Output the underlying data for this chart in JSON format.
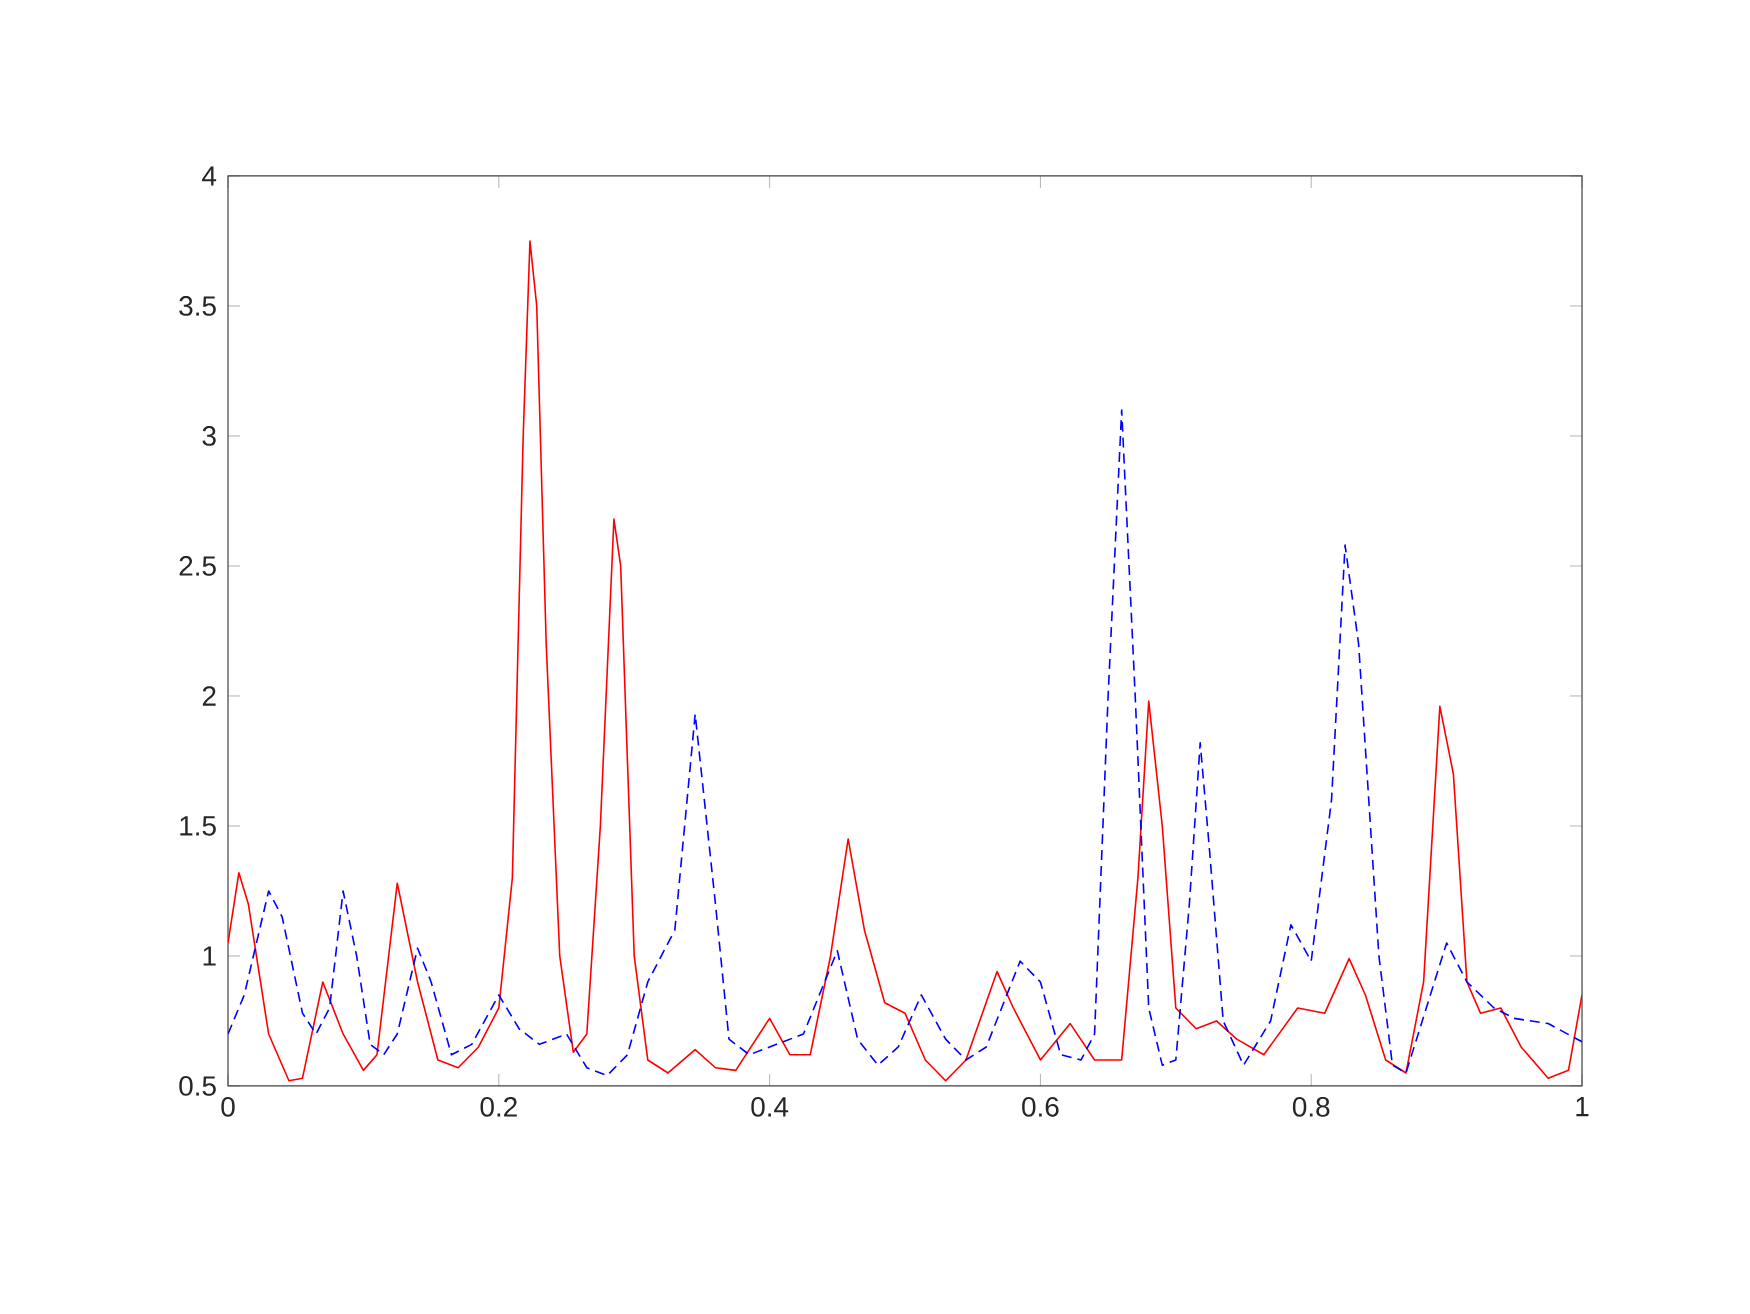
{
  "chart_data": {
    "type": "line",
    "xlim": [
      0,
      1
    ],
    "ylim": [
      0.5,
      4
    ],
    "xticks": [
      0,
      0.2,
      0.4,
      0.6,
      0.8,
      1
    ],
    "yticks": [
      0.5,
      1,
      1.5,
      2,
      2.5,
      3,
      3.5,
      4
    ],
    "marker": "none",
    "series": [
      {
        "color": "#ff0000",
        "line_style": "solid",
        "x": [
          0,
          0.008,
          0.015,
          0.03,
          0.045,
          0.055,
          0.07,
          0.085,
          0.1,
          0.11,
          0.125,
          0.14,
          0.155,
          0.17,
          0.185,
          0.2,
          0.21,
          0.218,
          0.223,
          0.228,
          0.235,
          0.245,
          0.255,
          0.265,
          0.275,
          0.285,
          0.29,
          0.3,
          0.31,
          0.325,
          0.345,
          0.36,
          0.375,
          0.4,
          0.415,
          0.43,
          0.445,
          0.458,
          0.47,
          0.485,
          0.5,
          0.515,
          0.53,
          0.545,
          0.568,
          0.58,
          0.6,
          0.622,
          0.64,
          0.66,
          0.672,
          0.68,
          0.69,
          0.7,
          0.715,
          0.73,
          0.745,
          0.765,
          0.79,
          0.81,
          0.828,
          0.84,
          0.855,
          0.87,
          0.883,
          0.895,
          0.905,
          0.915,
          0.925,
          0.94,
          0.955,
          0.975,
          0.99,
          1.0
        ],
        "values": [
          1.05,
          1.32,
          1.2,
          0.7,
          0.52,
          0.53,
          0.9,
          0.7,
          0.56,
          0.62,
          1.28,
          0.9,
          0.6,
          0.57,
          0.65,
          0.8,
          1.3,
          3.0,
          3.75,
          3.5,
          2.2,
          1.0,
          0.63,
          0.7,
          1.5,
          2.68,
          2.5,
          1.0,
          0.6,
          0.55,
          0.64,
          0.57,
          0.56,
          0.76,
          0.62,
          0.62,
          1.0,
          1.45,
          1.1,
          0.82,
          0.78,
          0.6,
          0.52,
          0.6,
          0.94,
          0.8,
          0.6,
          0.74,
          0.6,
          0.6,
          1.3,
          1.98,
          1.5,
          0.8,
          0.72,
          0.75,
          0.68,
          0.62,
          0.8,
          0.78,
          0.99,
          0.85,
          0.6,
          0.55,
          0.9,
          1.96,
          1.7,
          0.9,
          0.78,
          0.8,
          0.65,
          0.53,
          0.56,
          0.85
        ]
      },
      {
        "color": "#0000ff",
        "line_style": "dashed",
        "x": [
          0,
          0.012,
          0.03,
          0.04,
          0.055,
          0.065,
          0.075,
          0.085,
          0.095,
          0.105,
          0.115,
          0.125,
          0.14,
          0.15,
          0.165,
          0.18,
          0.2,
          0.215,
          0.23,
          0.25,
          0.265,
          0.28,
          0.295,
          0.31,
          0.33,
          0.345,
          0.36,
          0.37,
          0.385,
          0.4,
          0.425,
          0.45,
          0.465,
          0.48,
          0.495,
          0.512,
          0.53,
          0.545,
          0.56,
          0.585,
          0.6,
          0.615,
          0.63,
          0.64,
          0.65,
          0.66,
          0.67,
          0.68,
          0.69,
          0.7,
          0.71,
          0.718,
          0.725,
          0.735,
          0.75,
          0.77,
          0.785,
          0.8,
          0.815,
          0.825,
          0.835,
          0.85,
          0.86,
          0.87,
          0.885,
          0.9,
          0.915,
          0.935,
          0.95,
          0.975,
          1.0
        ],
        "values": [
          0.7,
          0.85,
          1.25,
          1.15,
          0.78,
          0.7,
          0.8,
          1.25,
          1.0,
          0.66,
          0.62,
          0.7,
          1.03,
          0.9,
          0.62,
          0.66,
          0.85,
          0.72,
          0.66,
          0.7,
          0.57,
          0.54,
          0.62,
          0.9,
          1.1,
          1.93,
          1.2,
          0.68,
          0.62,
          0.65,
          0.7,
          1.02,
          0.68,
          0.58,
          0.65,
          0.85,
          0.68,
          0.6,
          0.65,
          0.98,
          0.9,
          0.62,
          0.6,
          0.7,
          2.0,
          3.1,
          2.0,
          0.8,
          0.58,
          0.6,
          1.2,
          1.82,
          1.4,
          0.75,
          0.58,
          0.75,
          1.12,
          0.98,
          1.6,
          2.58,
          2.2,
          1.0,
          0.58,
          0.55,
          0.8,
          1.05,
          0.9,
          0.8,
          0.76,
          0.74,
          0.67
        ]
      }
    ]
  }
}
